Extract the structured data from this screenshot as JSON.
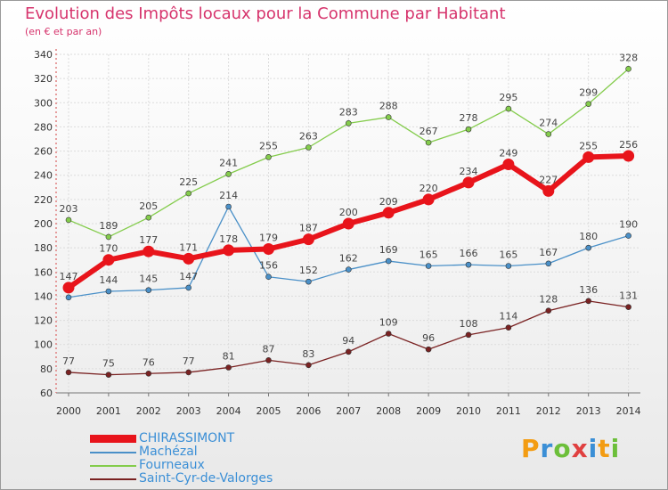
{
  "title": "Evolution des Impôts locaux pour la Commune par Habitant",
  "subtitle": "(en € et par an)",
  "brand": {
    "text": "Proxiti",
    "letters": [
      {
        "ch": "P",
        "color": "#f39c12"
      },
      {
        "ch": "r",
        "color": "#3b8fd6"
      },
      {
        "ch": "o",
        "color": "#6cbf3a"
      },
      {
        "ch": "x",
        "color": "#e04040"
      },
      {
        "ch": "i",
        "color": "#3b8fd6"
      },
      {
        "ch": "t",
        "color": "#f39c12"
      },
      {
        "ch": "i",
        "color": "#6cbf3a"
      }
    ]
  },
  "chart_data": {
    "type": "line",
    "x": [
      2000,
      2001,
      2002,
      2003,
      2004,
      2005,
      2006,
      2007,
      2008,
      2009,
      2010,
      2011,
      2012,
      2013,
      2014
    ],
    "ylim": [
      60,
      340
    ],
    "yticks": [
      60,
      80,
      100,
      120,
      140,
      160,
      180,
      200,
      220,
      240,
      260,
      280,
      300,
      320,
      340
    ],
    "grid": true,
    "legend_position": "bottom-left",
    "series": [
      {
        "name": "CHIRASSIMONT",
        "color": "#e8141b",
        "emphasis": "bold",
        "values": [
          147,
          170,
          177,
          171,
          178,
          179,
          187,
          200,
          209,
          220,
          234,
          249,
          227,
          255,
          256
        ]
      },
      {
        "name": "Machézal",
        "color": "#4a90c8",
        "emphasis": "normal",
        "values": [
          139,
          144,
          145,
          147,
          214,
          156,
          152,
          162,
          169,
          165,
          166,
          165,
          167,
          180,
          190
        ]
      },
      {
        "name": "Fourneaux",
        "color": "#84cc4c",
        "emphasis": "normal",
        "values": [
          203,
          189,
          205,
          225,
          241,
          255,
          263,
          283,
          288,
          267,
          278,
          295,
          274,
          299,
          328
        ]
      },
      {
        "name": "Saint-Cyr-de-Valorges",
        "color": "#7a2222",
        "emphasis": "normal",
        "values": [
          77,
          75,
          76,
          77,
          81,
          87,
          83,
          94,
          109,
          96,
          108,
          114,
          128,
          136,
          131
        ]
      }
    ],
    "visible_value_labels": [
      [
        "147",
        "170",
        "177",
        "171",
        "178",
        "179",
        "187",
        "200",
        "209",
        "220",
        "234",
        "249",
        "227",
        "255",
        "256"
      ],
      [
        "",
        "144",
        "145",
        "147",
        "214",
        "156",
        "152",
        "162",
        "169",
        "165",
        "166",
        "165",
        "167",
        "180",
        "190"
      ],
      [
        "203",
        "189",
        "205",
        "225",
        "241",
        "255",
        "263",
        "283",
        "288",
        "267",
        "278",
        "295",
        "274",
        "299",
        "328"
      ],
      [
        "77",
        "75",
        "76",
        "77",
        "81",
        "87",
        "83",
        "94",
        "109",
        "96",
        "108",
        "114",
        "128",
        "136",
        "131"
      ]
    ]
  }
}
